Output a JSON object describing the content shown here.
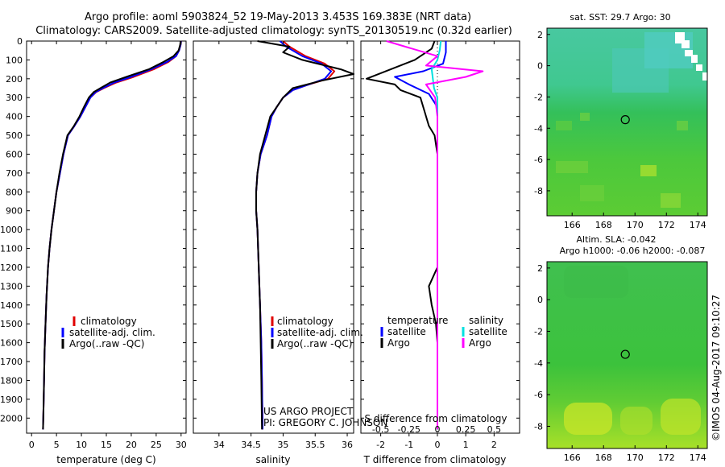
{
  "header": {
    "line1": "Argo profile: aoml 5903824_52 19-May-2013 3.453S 169.383E (NRT data)",
    "line2": "Climatology: CARS2009. Satellite-adjusted climatology: synTS_20130519.nc (0.32d earlier)"
  },
  "side_label": "©IMOS 04-Aug-2017 09:10:27",
  "project": {
    "line1": "US ARGO PROJECT",
    "line2": "PI: GREGORY C. JOHNSON"
  },
  "colors": {
    "climatology": "#e00000",
    "satellite": "#0000ff",
    "argo": "#000000",
    "salinity_satellite": "#00e0e0",
    "salinity_argo": "#ff00ff",
    "map_field": "#3ccc3c"
  },
  "chart_data": [
    {
      "id": "temperature",
      "type": "line",
      "xlabel": "temperature (deg C)",
      "ylabel": "",
      "xlim": [
        -1,
        31
      ],
      "ylim": [
        2080,
        0
      ],
      "xticks": [
        0,
        5,
        10,
        15,
        20,
        25,
        30
      ],
      "yticks": [
        0,
        100,
        200,
        300,
        400,
        500,
        600,
        700,
        800,
        900,
        1000,
        1100,
        1200,
        1300,
        1400,
        1500,
        1600,
        1700,
        1800,
        1900,
        2000
      ],
      "legend": [
        "climatology",
        "satellite-adj. clim.",
        "Argo(..raw -QC)"
      ],
      "series": [
        {
          "name": "climatology",
          "color": "#e00000",
          "x": [
            30.0,
            29.9,
            29.6,
            29.0,
            27.5,
            24.5,
            20.5,
            17.0,
            14.5,
            13.0,
            11.8,
            10.8,
            9.8,
            8.6,
            7.3,
            6.4,
            5.7,
            5.0,
            4.5,
            4.0,
            3.6,
            3.3,
            3.0,
            2.8,
            2.6,
            2.5,
            2.4,
            2.3
          ],
          "y": [
            0,
            20,
            50,
            80,
            110,
            150,
            190,
            220,
            250,
            270,
            300,
            350,
            400,
            450,
            500,
            600,
            700,
            800,
            900,
            1000,
            1100,
            1200,
            1350,
            1500,
            1650,
            1800,
            1950,
            2060
          ]
        },
        {
          "name": "satellite-adj. clim.",
          "color": "#0000ff",
          "x": [
            30.0,
            29.9,
            29.6,
            29.0,
            27.2,
            24.0,
            20.0,
            16.6,
            14.3,
            12.9,
            11.8,
            10.8,
            9.8,
            8.6,
            7.3,
            6.4,
            5.7,
            5.0,
            4.5,
            4.0,
            3.6,
            3.3,
            3.0,
            2.8,
            2.6,
            2.5,
            2.4,
            2.3
          ],
          "y": [
            0,
            20,
            50,
            80,
            110,
            150,
            190,
            220,
            250,
            270,
            300,
            350,
            400,
            450,
            500,
            600,
            700,
            800,
            900,
            1000,
            1100,
            1200,
            1350,
            1500,
            1650,
            1800,
            1950,
            2060
          ]
        },
        {
          "name": "Argo(..raw -QC)",
          "color": "#000000",
          "x": [
            29.9,
            29.8,
            29.5,
            28.5,
            26.5,
            23.5,
            19.0,
            15.8,
            13.8,
            12.5,
            11.5,
            10.5,
            9.6,
            8.5,
            7.2,
            6.3,
            5.6,
            5.0,
            4.5,
            4.0,
            3.6,
            3.3,
            3.0,
            2.8,
            2.6,
            2.5,
            2.4,
            2.3
          ],
          "y": [
            0,
            20,
            50,
            80,
            110,
            150,
            190,
            220,
            250,
            270,
            300,
            350,
            400,
            450,
            500,
            600,
            700,
            800,
            900,
            1000,
            1100,
            1200,
            1350,
            1500,
            1650,
            1800,
            1950,
            2060
          ]
        }
      ]
    },
    {
      "id": "salinity",
      "type": "line",
      "xlabel": "salinity",
      "xlim": [
        33.6,
        36.1
      ],
      "ylim": [
        2080,
        0
      ],
      "xticks": [
        34,
        34.5,
        35,
        35.5,
        36
      ],
      "xtick_labels": [
        "34",
        "34.5",
        "35",
        "35.5",
        "36"
      ],
      "legend": [
        "climatology",
        "satellite-adj. clim.",
        "Argo(..raw -QC)"
      ],
      "series": [
        {
          "name": "climatology",
          "color": "#e00000",
          "x": [
            35.0,
            35.1,
            35.35,
            35.65,
            35.8,
            35.7,
            35.4,
            35.15,
            35.0,
            34.9,
            34.82,
            34.75,
            34.65,
            34.6,
            34.58,
            34.58,
            34.6,
            34.62,
            34.64,
            34.66,
            34.67,
            34.68
          ],
          "y": [
            0,
            30,
            80,
            120,
            160,
            200,
            230,
            260,
            300,
            350,
            400,
            500,
            600,
            700,
            800,
            900,
            1000,
            1200,
            1400,
            1600,
            1800,
            2060
          ]
        },
        {
          "name": "satellite-adj. clim.",
          "color": "#0000ff",
          "x": [
            34.95,
            35.05,
            35.3,
            35.6,
            35.75,
            35.65,
            35.4,
            35.15,
            35.0,
            34.9,
            34.82,
            34.75,
            34.65,
            34.6,
            34.58,
            34.58,
            34.6,
            34.62,
            34.64,
            34.66,
            34.67,
            34.68
          ],
          "y": [
            0,
            30,
            80,
            120,
            160,
            200,
            230,
            260,
            300,
            350,
            400,
            500,
            600,
            700,
            800,
            900,
            1000,
            1200,
            1400,
            1600,
            1800,
            2060
          ]
        },
        {
          "name": "Argo(..raw -QC)",
          "color": "#000000",
          "x": [
            34.6,
            35.1,
            35.0,
            35.3,
            35.9,
            36.1,
            35.6,
            35.15,
            35.0,
            34.9,
            34.8,
            34.72,
            34.64,
            34.6,
            34.58,
            34.58,
            34.6,
            34.62,
            34.64,
            34.65,
            34.66,
            34.67
          ],
          "y": [
            0,
            30,
            60,
            100,
            150,
            175,
            210,
            250,
            300,
            350,
            400,
            500,
            600,
            700,
            800,
            900,
            1000,
            1200,
            1400,
            1600,
            1800,
            2060
          ]
        }
      ]
    },
    {
      "id": "difference",
      "type": "line",
      "xlabel": "T difference from climatology",
      "xlabel_top": "S difference from climatology",
      "xlim": [
        -2.7,
        2.9
      ],
      "ylim": [
        2080,
        0
      ],
      "xticks": [
        -2,
        -1,
        0,
        1,
        2
      ],
      "xticks_top": [
        -0.5,
        -0.25,
        0,
        0.25,
        0.5
      ],
      "xtick_labels_top": [
        "-0.5",
        "-0.25",
        "0",
        "0.25",
        "0.5"
      ],
      "legend_titles": [
        "temperature",
        "salinity"
      ],
      "legend_temperature": [
        "satellite",
        "Argo"
      ],
      "legend_salinity": [
        "satellite",
        "Argo"
      ],
      "series": [
        {
          "name": "temperature satellite",
          "color": "#0000ff",
          "x": [
            0.3,
            0.3,
            0.2,
            -0.5,
            -1.5,
            -1.0,
            -0.3,
            0.0,
            0.0,
            0.0,
            0.0,
            0.0,
            0.0,
            0.0,
            0.0,
            0.0,
            0.0,
            0.0
          ],
          "y": [
            0,
            60,
            120,
            160,
            190,
            230,
            280,
            350,
            450,
            600,
            800,
            1000,
            1200,
            1400,
            1600,
            1800,
            1950,
            2060
          ]
        },
        {
          "name": "temperature Argo",
          "color": "#000000",
          "x": [
            -0.1,
            -0.2,
            -0.8,
            -2.5,
            -1.5,
            -1.3,
            -0.6,
            -0.5,
            -0.3,
            -0.1,
            0.0,
            0.0,
            0.0,
            -0.3,
            -0.2,
            -0.05,
            0.0,
            0.0,
            0.0,
            0.0
          ],
          "y": [
            0,
            40,
            100,
            200,
            230,
            260,
            300,
            350,
            450,
            500,
            600,
            900,
            1200,
            1300,
            1400,
            1500,
            1600,
            1800,
            1950,
            2060
          ]
        },
        {
          "name": "salinity satellite",
          "color": "#00e0e0",
          "x": [
            0.03,
            0.02,
            0.0,
            -0.05,
            -0.03,
            0.0,
            0.0,
            0.0,
            0.0,
            0.0,
            0.0,
            0.0,
            0.0
          ],
          "y": [
            0,
            50,
            100,
            150,
            250,
            300,
            400,
            600,
            900,
            1200,
            1500,
            1800,
            2060
          ],
          "axis": "top"
        },
        {
          "name": "salinity Argo",
          "color": "#ff00ff",
          "x": [
            -0.45,
            0.0,
            -0.1,
            0.4,
            0.25,
            -0.1,
            -0.02,
            0.0,
            0.0,
            0.0,
            0.0,
            0.0,
            0.0
          ],
          "y": [
            0,
            80,
            130,
            160,
            190,
            230,
            300,
            400,
            600,
            900,
            1200,
            1600,
            2060
          ],
          "axis": "top"
        }
      ]
    },
    {
      "id": "sst_map",
      "type": "heatmap",
      "title": "sat. SST: 29.7  Argo: 30",
      "xticks": [
        166,
        168,
        170,
        172,
        174
      ],
      "yticks": [
        2,
        0,
        -2,
        -4,
        -6,
        -8
      ],
      "xlim": [
        164.4,
        174.6
      ],
      "ylim": [
        -9.6,
        2.4
      ],
      "marker": {
        "x": 169.383,
        "y": -3.453
      }
    },
    {
      "id": "sla_map",
      "type": "heatmap",
      "title_line1": "Altim. SLA: -0.042",
      "title_line2": "Argo h1000: -0.06 h2000: -0.087",
      "xticks": [
        166,
        168,
        170,
        172,
        174
      ],
      "yticks": [
        2,
        0,
        -2,
        -4,
        -6,
        -8
      ],
      "xlim": [
        164.4,
        174.6
      ],
      "ylim": [
        -9.4,
        2.4
      ],
      "marker": {
        "x": 169.383,
        "y": -3.453
      }
    }
  ]
}
